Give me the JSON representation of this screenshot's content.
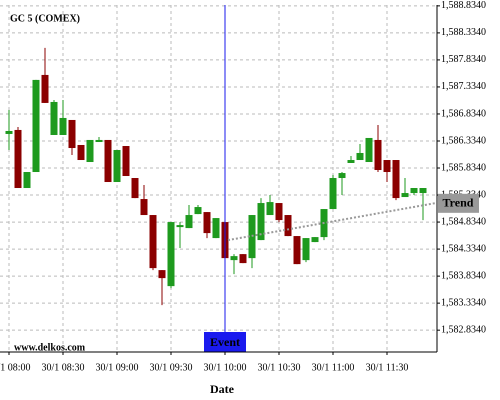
{
  "chart_data": {
    "type": "candlestick",
    "title": "GC 5 (COMEX)",
    "watermark": "www.delkos.com",
    "x_label": "Date",
    "categories": [
      "30/1 08:00",
      null,
      null,
      null,
      null,
      null,
      "30/1 08:30",
      null,
      null,
      null,
      null,
      null,
      "30/1 09:00",
      null,
      null,
      null,
      null,
      null,
      "30/1 09:30",
      null,
      null,
      null,
      null,
      null,
      "30/1 10:00",
      null,
      null,
      null,
      null,
      null,
      "30/1 10:30",
      null,
      null,
      null,
      null,
      null,
      "30/1 11:00",
      null,
      null,
      null,
      null,
      null,
      "30/1 11:30",
      null,
      null,
      null,
      null
    ],
    "open": [
      1586.464,
      1586.538,
      1585.464,
      1585.76,
      1587.556,
      1586.445,
      1586.445,
      1586.723,
      1586.26,
      1585.945,
      1586.315,
      1586.353,
      1585.575,
      1586.241,
      1585.649,
      1585.26,
      1584.964,
      1583.945,
      1583.649,
      1584.741,
      1584.723,
      1584.982,
      1585.019,
      1584.538,
      1584.834,
      1584.13,
      1584.241,
      1584.167,
      1584.501,
      1584.964,
      1585.186,
      1584.964,
      1584.575,
      1584.13,
      1584.464,
      1584.556,
      1585.075,
      1585.649,
      1585.927,
      1585.982,
      1585.945,
      1586.353,
      1585.982,
      1585.982,
      1585.297,
      1585.371,
      1585.371
    ],
    "high": [
      1586.908,
      1586.593,
      1585.76,
      1587.464,
      1588.056,
      1587.093,
      1587.093,
      1586.723,
      1586.26,
      1586.353,
      1586.408,
      1586.353,
      1586.167,
      1586.241,
      1585.649,
      1585.519,
      1584.964,
      1583.945,
      1584.834,
      1584.834,
      1585.149,
      1585.149,
      1585.019,
      1584.908,
      1584.834,
      1584.241,
      1584.241,
      1584.964,
      1585.278,
      1585.334,
      1585.186,
      1584.964,
      1584.575,
      1584.538,
      1584.556,
      1585.075,
      1585.704,
      1585.76,
      1586.056,
      1586.278,
      1586.39,
      1586.63,
      1585.982,
      1585.982,
      1585.649,
      1585.464,
      1585.464
    ],
    "low": [
      1586.167,
      1585.464,
      1585.464,
      1585.76,
      1587.038,
      1586.445,
      1586.445,
      1586.075,
      1585.982,
      1585.945,
      1586.315,
      1585.575,
      1585.575,
      1585.686,
      1585.278,
      1584.964,
      1583.945,
      1583.297,
      1583.612,
      1584.353,
      1584.723,
      1584.982,
      1584.538,
      1584.538,
      1584.167,
      1583.871,
      1584.075,
      1583.982,
      1584.501,
      1584.964,
      1584.834,
      1584.575,
      1584.056,
      1584.093,
      1584.464,
      1584.501,
      1585.075,
      1585.334,
      1585.927,
      1585.982,
      1585.945,
      1585.76,
      1585.575,
      1585.241,
      1585.297,
      1585.334,
      1584.871
    ],
    "close": [
      1586.519,
      1585.464,
      1585.76,
      1587.464,
      1587.038,
      1587.056,
      1586.76,
      1586.204,
      1585.982,
      1586.353,
      1586.353,
      1585.575,
      1586.167,
      1585.686,
      1585.278,
      1584.964,
      1583.982,
      1583.797,
      1584.834,
      1584.778,
      1584.964,
      1585.112,
      1584.63,
      1584.908,
      1584.167,
      1584.204,
      1584.075,
      1584.964,
      1585.186,
      1585.204,
      1584.871,
      1584.575,
      1584.056,
      1584.538,
      1584.556,
      1585.075,
      1585.649,
      1585.741,
      1585.982,
      1586.112,
      1586.39,
      1585.797,
      1585.76,
      1585.278,
      1585.371,
      1585.464,
      1585.464
    ],
    "up_color": "#1e9a1e",
    "down_color": "#8b0000",
    "ylim": [
      1582.43,
      1588.85
    ],
    "yticks": [
      {
        "value": 1588.834,
        "label": "1,588.8340"
      },
      {
        "value": 1588.334,
        "label": "1,588.3340"
      },
      {
        "value": 1587.834,
        "label": "1,587.8340"
      },
      {
        "value": 1587.334,
        "label": "1,587.3340"
      },
      {
        "value": 1586.834,
        "label": "1,586.8340"
      },
      {
        "value": 1586.334,
        "label": "1,586.3340"
      },
      {
        "value": 1585.834,
        "label": "1,585.8340"
      },
      {
        "value": 1585.334,
        "label": "1,585.3340"
      },
      {
        "value": 1584.834,
        "label": "1,584.8340"
      },
      {
        "value": 1584.334,
        "label": "1,584.3340"
      },
      {
        "value": 1583.834,
        "label": "1,583.8340"
      },
      {
        "value": 1583.334,
        "label": "1,583.3340"
      },
      {
        "value": 1582.834,
        "label": "1,582.8340"
      }
    ],
    "grid": true,
    "event": {
      "label": "Event",
      "category": "30/1 10:00",
      "color": "#1a1aee"
    },
    "trend": {
      "label": "Trend",
      "values": [
        1584.5,
        1585.19
      ],
      "color": "#999999"
    }
  }
}
